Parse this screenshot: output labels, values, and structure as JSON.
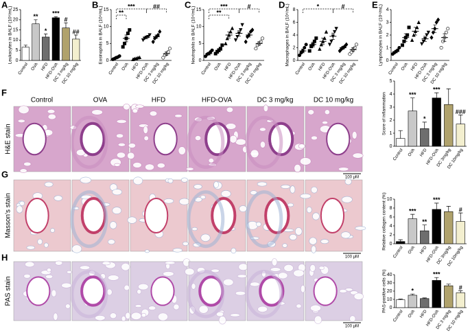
{
  "chart_data": [
    {
      "type": "bar",
      "panel": "A",
      "ylabel": "Leukocytes in BALF (10⁵/mL)",
      "categories": [
        "Control",
        "OVA",
        "HFD",
        "HFD-OVA",
        "DC 3 mg/kg",
        "DC 10 mg/kg"
      ],
      "values": [
        6.5,
        18,
        11.5,
        21,
        16,
        10.5
      ],
      "errors": [
        1,
        2,
        1.5,
        0.5,
        2.5,
        2
      ],
      "annotations": [
        null,
        "**",
        "*",
        "***",
        "#",
        "##"
      ],
      "colors": [
        "#ffffff",
        "#c8c8c8",
        "#6e6e6e",
        "#000000",
        "#b0a26c",
        "#f3efcf"
      ],
      "ylim": [
        0,
        25
      ],
      "yticks": [
        0,
        5,
        10,
        15,
        20,
        25
      ]
    },
    {
      "type": "dot",
      "panel": "B",
      "ylabel": "Eosinophils in BALF (10⁴/mL)",
      "categories": [
        "Control",
        "OVA",
        "HFD",
        "HFD-OVA",
        "DC 3 mg/kg",
        "DC 10 mg/kg"
      ],
      "markers": [
        "circle",
        "square",
        "triangle",
        "triangle-down",
        "diamond",
        "circle-open"
      ],
      "points": [
        [
          0.3,
          0.5,
          0.8,
          1,
          1.3
        ],
        [
          4,
          5,
          6.5,
          8,
          9
        ],
        [
          0.3,
          0.5,
          0.6,
          0.8,
          0.9
        ],
        [
          6,
          6.5,
          6.8,
          7,
          7.5
        ],
        [
          5.5,
          6.5,
          7,
          7.5,
          8.5
        ],
        [
          0.8,
          1.5,
          2,
          2.5,
          3.5
        ]
      ],
      "values": [
        0.8,
        6.5,
        0.6,
        6.8,
        7,
        2
      ],
      "errors": [
        0.3,
        1,
        0.1,
        0.4,
        0.5,
        0.5
      ],
      "comparisons": [
        {
          "from": "Control",
          "to": "HFD-OVA",
          "label": "***"
        },
        {
          "from": "Control",
          "to": "OVA",
          "label": "**"
        },
        {
          "from": "HFD-OVA",
          "to": "DC 10 mg/kg",
          "label": "##"
        }
      ],
      "ylim": [
        0,
        15
      ],
      "yticks": [
        0,
        5,
        10,
        15
      ]
    },
    {
      "type": "dot",
      "panel": "C",
      "ylabel": "Neutrophils in BALF (10⁴/mL)",
      "categories": [
        "Control",
        "OVA",
        "HFD",
        "HFD-OVA",
        "DC 3 mg/kg",
        "DC 10 mg/kg"
      ],
      "markers": [
        "circle",
        "square",
        "triangle",
        "triangle-down",
        "diamond",
        "circle-open"
      ],
      "points": [
        [
          1.2,
          1.8,
          2,
          2.5,
          3
        ],
        [
          2,
          2.5,
          3,
          3.5,
          4.5
        ],
        [
          5,
          6.5,
          7.5,
          8.5,
          9.5
        ],
        [
          6,
          7,
          8,
          9,
          10.5
        ],
        [
          5.5,
          7,
          7.5,
          8.5,
          9
        ],
        [
          3.5,
          4.5,
          5,
          5.5,
          6.5
        ]
      ],
      "values": [
        2,
        3,
        7.5,
        8,
        7.5,
        5
      ],
      "errors": [
        0.4,
        0.5,
        0.9,
        0.8,
        0.6,
        0.5
      ],
      "comparisons": [
        {
          "from": "Control",
          "to": "HFD-OVA",
          "label": "***"
        },
        {
          "from": "Control",
          "to": "HFD",
          "label": "**"
        },
        {
          "from": "HFD-OVA",
          "to": "DC 10 mg/kg",
          "label": "#"
        }
      ],
      "ylim": [
        0,
        15
      ],
      "yticks": [
        0,
        5,
        10,
        15
      ]
    },
    {
      "type": "dot",
      "panel": "D",
      "ylabel": "Macrophages in BALF (10⁴/mL)",
      "categories": [
        "Control",
        "OVA",
        "HFD",
        "HFD-OVA",
        "DC 3 mg/kg",
        "DC 10 mg/kg"
      ],
      "markers": [
        "circle",
        "square",
        "triangle",
        "triangle-down",
        "diamond",
        "circle-open"
      ],
      "points": [
        [
          0.8,
          1.2,
          1.5,
          2,
          2.5
        ],
        [
          1.5,
          2.2,
          2.5,
          3,
          3.5
        ],
        [
          1.8,
          2.5,
          3,
          3.5,
          4.5
        ],
        [
          2.5,
          3,
          3.8,
          4.5,
          5
        ],
        [
          1.5,
          1.8,
          2,
          2.2,
          2.5
        ],
        [
          1,
          1.3,
          1.7,
          2,
          2.5
        ]
      ],
      "values": [
        1.5,
        2.5,
        3,
        3.8,
        2,
        1.7
      ],
      "errors": [
        0.3,
        0.4,
        0.5,
        0.5,
        0.2,
        0.3
      ],
      "comparisons": [
        {
          "from": "Control",
          "to": "HFD-OVA",
          "label": "*"
        },
        {
          "from": "HFD-OVA",
          "to": "DC 10 mg/kg",
          "label": "#"
        }
      ],
      "ylim": [
        0,
        8
      ],
      "yticks": [
        0,
        2,
        4,
        6,
        8
      ]
    },
    {
      "type": "dot",
      "panel": "E",
      "ylabel": "Lymphocytes in BALF (10⁴/mL)",
      "categories": [
        "Control",
        "OVA",
        "HFD",
        "HFD-OVA",
        "DC 3 mg/kg",
        "DC 10 mg/kg"
      ],
      "markers": [
        "circle",
        "square",
        "triangle",
        "triangle-down",
        "diamond",
        "circle-open"
      ],
      "points": [
        [
          0.5,
          0.6,
          0.7,
          0.8,
          1
        ],
        [
          1.2,
          1.5,
          1.8,
          2,
          2.6
        ],
        [
          1.6,
          2,
          2.3,
          2.6,
          3
        ],
        [
          1.3,
          1.5,
          1.7,
          2,
          2.2
        ],
        [
          1.8,
          2.2,
          2.5,
          3,
          3.2
        ],
        [
          1,
          1.5,
          1.8,
          2.2,
          2.5
        ]
      ],
      "values": [
        0.7,
        1.8,
        2.3,
        1.7,
        2.5,
        1.8
      ],
      "errors": [
        0.1,
        0.3,
        0.3,
        0.2,
        0.3,
        0.3
      ],
      "ylim": [
        0,
        4
      ],
      "yticks": [
        0,
        1,
        2,
        3,
        4
      ]
    },
    {
      "type": "bar",
      "ylabel": "Score of inflammation",
      "categories": [
        "Control",
        "OVA",
        "HFD",
        "HFD-OVA",
        "DC 3mg/kg",
        "DC 10mg/kg"
      ],
      "values": [
        0.6,
        2.7,
        1.35,
        3.7,
        3.2,
        1.7
      ],
      "errors": [
        0.6,
        1,
        0.5,
        0.4,
        1.2,
        0.7
      ],
      "annotations": [
        null,
        "***",
        "*",
        "***",
        null,
        "###"
      ],
      "colors": [
        "#ffffff",
        "#c8c8c8",
        "#6e6e6e",
        "#000000",
        "#b0a26c",
        "#f3efcf"
      ],
      "ylim": [
        0,
        5
      ],
      "yticks": [
        0,
        1,
        2,
        3,
        4,
        5
      ]
    },
    {
      "type": "bar",
      "ylabel": "Relative collagen content (%)",
      "categories": [
        "Control",
        "OVA",
        "HFD",
        "HFD-OVA",
        "DC 3mg/kg",
        "DC 10mg/kg"
      ],
      "values": [
        0.5,
        5.6,
        2.9,
        7.7,
        7.2,
        5
      ],
      "errors": [
        0.4,
        1,
        1.3,
        1.4,
        1.2,
        1.9
      ],
      "annotations": [
        null,
        "***",
        "**",
        "***",
        null,
        "#"
      ],
      "colors": [
        "#000000",
        "#c8c8c8",
        "#6e6e6e",
        "#000000",
        "#b0a26c",
        "#f3efcf"
      ],
      "ylim": [
        0,
        10
      ],
      "yticks": [
        0,
        2,
        4,
        6,
        8,
        10
      ]
    },
    {
      "type": "bar",
      "ylabel": "PAS-positive cells (%)",
      "categories": [
        "Control",
        "OVA",
        "HFD",
        "HFD-OVA",
        "DC 3 mg/kg",
        "DC 10 mg/kg"
      ],
      "values": [
        9.5,
        15,
        11,
        33,
        26.5,
        18
      ],
      "errors": [
        0.8,
        1.5,
        0.8,
        3.5,
        2,
        2.5
      ],
      "annotations": [
        null,
        "*",
        null,
        "***",
        null,
        "#"
      ],
      "colors": [
        "#ffffff",
        "#c8c8c8",
        "#6e6e6e",
        "#000000",
        "#b0a26c",
        "#f3efcf"
      ],
      "ylim": [
        0,
        40
      ],
      "yticks": [
        0,
        10,
        20,
        30,
        40
      ]
    }
  ],
  "histology": {
    "columns": [
      "Control",
      "OVA",
      "HFD",
      "HFD-OVA",
      "DC 3 mg/kg",
      "DC 10 mg/kg"
    ],
    "rows": [
      {
        "panel": "F",
        "label": "H&E stain"
      },
      {
        "panel": "G",
        "label": "Masson's stain"
      },
      {
        "panel": "H",
        "label": "PAS stain"
      }
    ],
    "scale_bar": "100 μM"
  }
}
